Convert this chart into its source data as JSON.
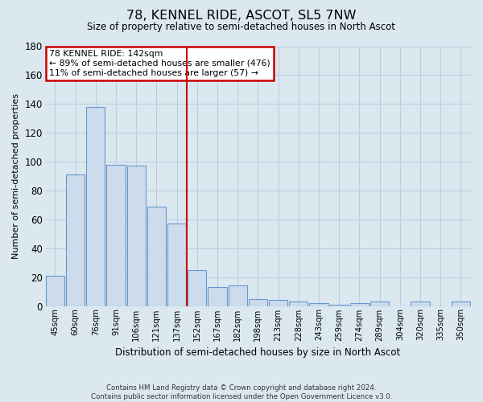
{
  "title": "78, KENNEL RIDE, ASCOT, SL5 7NW",
  "subtitle": "Size of property relative to semi-detached houses in North Ascot",
  "xlabel": "Distribution of semi-detached houses by size in North Ascot",
  "ylabel": "Number of semi-detached properties",
  "categories": [
    "45sqm",
    "60sqm",
    "76sqm",
    "91sqm",
    "106sqm",
    "121sqm",
    "137sqm",
    "152sqm",
    "167sqm",
    "182sqm",
    "198sqm",
    "213sqm",
    "228sqm",
    "243sqm",
    "259sqm",
    "274sqm",
    "289sqm",
    "304sqm",
    "320sqm",
    "335sqm",
    "350sqm"
  ],
  "values": [
    21,
    91,
    138,
    98,
    97,
    69,
    57,
    25,
    13,
    14,
    5,
    4,
    3,
    2,
    1,
    2,
    3,
    0,
    3,
    0,
    3
  ],
  "bar_color": "#ccdcec",
  "bar_edge_color": "#6699cc",
  "highlight_index": 7,
  "vline_color": "#cc0000",
  "annotation_title": "78 KENNEL RIDE: 142sqm",
  "annotation_line1": "← 89% of semi-detached houses are smaller (476)",
  "annotation_line2": "11% of semi-detached houses are larger (57) →",
  "annotation_box_color": "#ffffff",
  "annotation_box_edge_color": "#cc0000",
  "ylim": [
    0,
    180
  ],
  "yticks": [
    0,
    20,
    40,
    60,
    80,
    100,
    120,
    140,
    160,
    180
  ],
  "grid_color": "#b8cfe0",
  "background_color": "#dce8f0",
  "footer": "Contains HM Land Registry data © Crown copyright and database right 2024.\nContains public sector information licensed under the Open Government Licence v3.0."
}
